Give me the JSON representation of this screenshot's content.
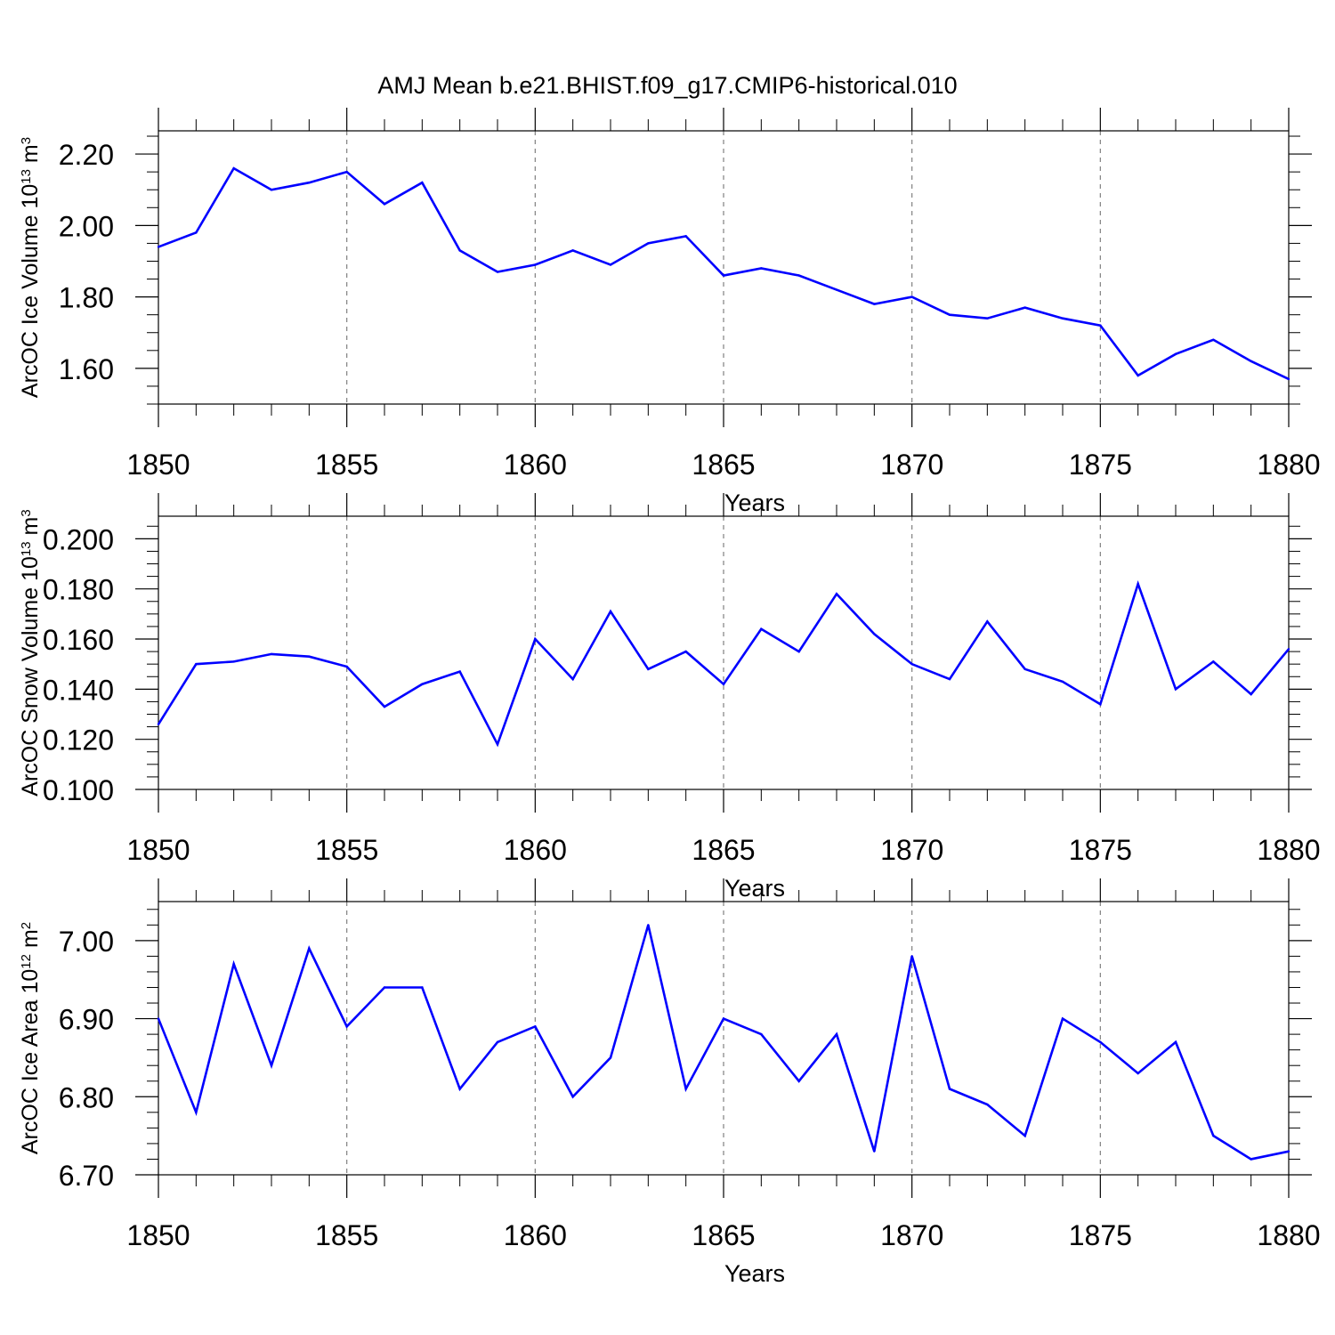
{
  "title": "AMJ Mean b.e21.BHIST.f09_g17.CMIP6-historical.010",
  "colors": {
    "line": "#0000ff",
    "axis": "#000000",
    "grid": "#808080"
  },
  "chart_data": [
    {
      "type": "line",
      "xlabel": "Years",
      "ylabel_text": "ArcOC Ice Volume 10",
      "ylabel_exp": "13",
      "ylabel_unit": "m",
      "ylabel_unit_exp": "3",
      "xlim": [
        1850,
        1880
      ],
      "ylim": [
        1.5,
        2.265
      ],
      "xticks": [
        1850,
        1855,
        1860,
        1865,
        1870,
        1875,
        1880
      ],
      "yticks": [
        1.6,
        1.8,
        2.0,
        2.2
      ],
      "ytick_labels": [
        "1.60",
        "1.80",
        "2.00",
        "2.20"
      ],
      "yminor_step": 0.05,
      "grid": "vertical dashed at major x ticks",
      "series": [
        {
          "x": [
            1850,
            1851,
            1852,
            1853,
            1854,
            1855,
            1856,
            1857,
            1858,
            1859,
            1860,
            1861,
            1862,
            1863,
            1864,
            1865,
            1866,
            1867,
            1868,
            1869,
            1870,
            1871,
            1872,
            1873,
            1874,
            1875,
            1876,
            1877,
            1878,
            1879,
            1880
          ],
          "values": [
            1.94,
            1.98,
            2.16,
            2.1,
            2.12,
            2.15,
            2.06,
            2.12,
            1.93,
            1.87,
            1.89,
            1.93,
            1.89,
            1.95,
            1.97,
            1.86,
            1.88,
            1.86,
            1.82,
            1.78,
            1.8,
            1.75,
            1.74,
            1.77,
            1.74,
            1.72,
            1.58,
            1.64,
            1.68,
            1.62,
            1.57
          ]
        }
      ]
    },
    {
      "type": "line",
      "xlabel": "Years",
      "ylabel_text": "ArcOC Snow Volume 10",
      "ylabel_exp": "13",
      "ylabel_unit": "m",
      "ylabel_unit_exp": "3",
      "xlim": [
        1850,
        1880
      ],
      "ylim": [
        0.1,
        0.209
      ],
      "xticks": [
        1850,
        1855,
        1860,
        1865,
        1870,
        1875,
        1880
      ],
      "yticks": [
        0.1,
        0.12,
        0.14,
        0.16,
        0.18,
        0.2
      ],
      "ytick_labels": [
        "0.100",
        "0.120",
        "0.140",
        "0.160",
        "0.180",
        "0.200"
      ],
      "yminor_step": 0.005,
      "grid": "vertical dashed at major x ticks",
      "series": [
        {
          "x": [
            1850,
            1851,
            1852,
            1853,
            1854,
            1855,
            1856,
            1857,
            1858,
            1859,
            1860,
            1861,
            1862,
            1863,
            1864,
            1865,
            1866,
            1867,
            1868,
            1869,
            1870,
            1871,
            1872,
            1873,
            1874,
            1875,
            1876,
            1877,
            1878,
            1879,
            1880
          ],
          "values": [
            0.126,
            0.15,
            0.151,
            0.154,
            0.153,
            0.149,
            0.133,
            0.142,
            0.147,
            0.118,
            0.16,
            0.144,
            0.171,
            0.148,
            0.155,
            0.142,
            0.164,
            0.155,
            0.178,
            0.162,
            0.15,
            0.144,
            0.167,
            0.148,
            0.143,
            0.134,
            0.182,
            0.14,
            0.151,
            0.138,
            0.156
          ]
        }
      ]
    },
    {
      "type": "line",
      "xlabel": "Years",
      "ylabel_text": "ArcOC Ice Area 10",
      "ylabel_exp": "12",
      "ylabel_unit": "m",
      "ylabel_unit_exp": "2",
      "xlim": [
        1850,
        1880
      ],
      "ylim": [
        6.7,
        7.05
      ],
      "xticks": [
        1850,
        1855,
        1860,
        1865,
        1870,
        1875,
        1880
      ],
      "yticks": [
        6.7,
        6.8,
        6.9,
        7.0
      ],
      "ytick_labels": [
        "6.70",
        "6.80",
        "6.90",
        "7.00"
      ],
      "yminor_step": 0.02,
      "grid": "vertical dashed at major x ticks",
      "series": [
        {
          "x": [
            1850,
            1851,
            1852,
            1853,
            1854,
            1855,
            1856,
            1857,
            1858,
            1859,
            1860,
            1861,
            1862,
            1863,
            1864,
            1865,
            1866,
            1867,
            1868,
            1869,
            1870,
            1871,
            1872,
            1873,
            1874,
            1875,
            1876,
            1877,
            1878,
            1879,
            1880
          ],
          "values": [
            6.9,
            6.78,
            6.97,
            6.84,
            6.99,
            6.89,
            6.94,
            6.94,
            6.81,
            6.87,
            6.89,
            6.8,
            6.85,
            7.02,
            6.81,
            6.9,
            6.88,
            6.82,
            6.88,
            6.73,
            6.98,
            6.81,
            6.79,
            6.75,
            6.9,
            6.87,
            6.83,
            6.87,
            6.75,
            6.72,
            6.73
          ]
        }
      ]
    }
  ]
}
